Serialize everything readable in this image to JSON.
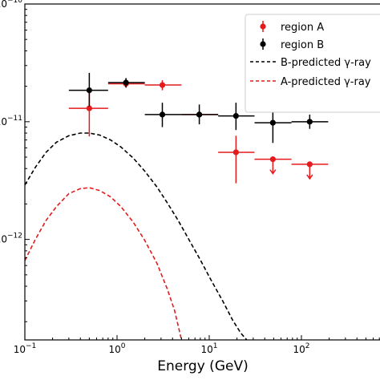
{
  "chart_data": {
    "type": "scatter",
    "title": "",
    "xlabel": "Energy (GeV)",
    "ylabel": "",
    "x_scale": "log",
    "y_scale": "log",
    "xlim": [
      0.1,
      1000
    ],
    "ylim": [
      1.4e-13,
      1e-10
    ],
    "grid": false,
    "legend_position": "top-right",
    "x_ticks": [
      {
        "base": "10",
        "exp": "−1",
        "value": 0.1
      },
      {
        "base": "10",
        "exp": "0",
        "value": 1
      },
      {
        "base": "10",
        "exp": "1",
        "value": 10
      },
      {
        "base": "10",
        "exp": "2",
        "value": 100
      }
    ],
    "y_ticks": [
      {
        "base": "10",
        "exp": "−10",
        "value": 1e-10
      },
      {
        "base": "10",
        "exp": "−11",
        "value": 1e-11
      },
      {
        "base": "10",
        "exp": "−12",
        "value": 1e-12
      }
    ],
    "series": [
      {
        "name": "region A",
        "kind": "errorbar",
        "color": "#e41a1c",
        "points": [
          {
            "x": 0.5,
            "y": 1.3e-11,
            "xlo": 0.3,
            "xhi": 0.8,
            "ylo": 7.5e-12,
            "yhi": 1.85e-11,
            "upper_limit": false
          },
          {
            "x": 1.25,
            "y": 2.1e-11,
            "xlo": 0.8,
            "xhi": 2.0,
            "ylo": 1.95e-11,
            "yhi": 2.3e-11,
            "upper_limit": false
          },
          {
            "x": 3.1,
            "y": 2.05e-11,
            "xlo": 2.0,
            "xhi": 5.0,
            "ylo": 1.85e-11,
            "yhi": 2.25e-11,
            "upper_limit": false
          },
          {
            "x": 7.8,
            "y": 1.15e-11,
            "xlo": 5.0,
            "xhi": 12.5,
            "ylo": 1.08e-11,
            "yhi": 1.22e-11,
            "upper_limit": false
          },
          {
            "x": 19.5,
            "y": 5.5e-12,
            "xlo": 12.5,
            "xhi": 31.0,
            "ylo": 3e-12,
            "yhi": 7.6e-12,
            "upper_limit": false
          },
          {
            "x": 49,
            "y": 4.8e-12,
            "xlo": 31,
            "xhi": 78,
            "ylo": null,
            "yhi": null,
            "upper_limit": true
          },
          {
            "x": 123,
            "y": 4.35e-12,
            "xlo": 78,
            "xhi": 195,
            "ylo": null,
            "yhi": null,
            "upper_limit": true
          }
        ]
      },
      {
        "name": "region B",
        "kind": "errorbar",
        "color": "#000000",
        "points": [
          {
            "x": 0.5,
            "y": 1.85e-11,
            "xlo": 0.3,
            "xhi": 0.8,
            "ylo": 1.35e-11,
            "yhi": 2.6e-11,
            "upper_limit": false
          },
          {
            "x": 1.25,
            "y": 2.15e-11,
            "xlo": 0.8,
            "xhi": 2.0,
            "ylo": 1.95e-11,
            "yhi": 2.35e-11,
            "upper_limit": false
          },
          {
            "x": 3.1,
            "y": 1.15e-11,
            "xlo": 2.0,
            "xhi": 5.0,
            "ylo": 9e-12,
            "yhi": 1.45e-11,
            "upper_limit": false
          },
          {
            "x": 7.8,
            "y": 1.15e-11,
            "xlo": 5.0,
            "xhi": 12.5,
            "ylo": 9.5e-12,
            "yhi": 1.4e-11,
            "upper_limit": false
          },
          {
            "x": 19.5,
            "y": 1.12e-11,
            "xlo": 12.5,
            "xhi": 31.0,
            "ylo": 8.5e-12,
            "yhi": 1.45e-11,
            "upper_limit": false
          },
          {
            "x": 49,
            "y": 9.8e-12,
            "xlo": 31,
            "xhi": 78,
            "ylo": 6.6e-12,
            "yhi": 1.45e-11,
            "upper_limit": false
          },
          {
            "x": 123,
            "y": 1e-11,
            "xlo": 78,
            "xhi": 195,
            "ylo": 8.7e-12,
            "yhi": 1.15e-11,
            "upper_limit": false
          }
        ]
      },
      {
        "name": "B-predicted γ-ray",
        "kind": "dashed-line",
        "color": "#000000",
        "x": [
          0.1,
          0.13,
          0.17,
          0.22,
          0.3,
          0.4,
          0.5,
          0.65,
          0.85,
          1.1,
          1.5,
          2.0,
          2.7,
          3.5,
          4.6,
          6.0,
          8.0,
          10.5,
          14,
          18,
          22,
          25.5
        ],
        "y": [
          2.9e-12,
          4.1e-12,
          5.5e-12,
          6.7e-12,
          7.6e-12,
          8e-12,
          8e-12,
          7.7e-12,
          7e-12,
          6.1e-12,
          4.9e-12,
          3.8e-12,
          2.8e-12,
          2.05e-12,
          1.45e-12,
          1e-12,
          6.7e-13,
          4.5e-13,
          3e-13,
          2.05e-13,
          1.6e-13,
          1.4e-13
        ]
      },
      {
        "name": "A-predicted γ-ray",
        "kind": "dashed-line",
        "color": "#e41a1c",
        "x": [
          0.1,
          0.13,
          0.17,
          0.22,
          0.3,
          0.4,
          0.5,
          0.65,
          0.85,
          1.1,
          1.5,
          2.0,
          2.7,
          3.5,
          4.2,
          5.0
        ],
        "y": [
          6.6e-13,
          1e-12,
          1.45e-12,
          1.9e-12,
          2.45e-12,
          2.7e-12,
          2.75e-12,
          2.6e-12,
          2.3e-12,
          1.9e-12,
          1.4e-12,
          9.8e-13,
          6.3e-13,
          3.8e-13,
          2.5e-13,
          1.4e-13
        ]
      }
    ]
  }
}
